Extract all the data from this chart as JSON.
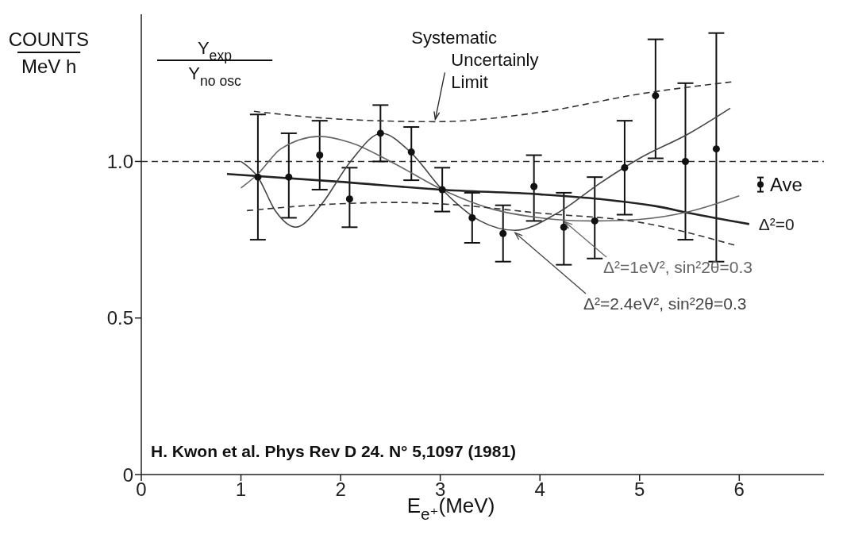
{
  "chart_data": {
    "type": "line",
    "ylabel": "COUNTS/MeV h",
    "xlabel": "E$_{e⁺}$(MeV)",
    "annotations": [
      "Y$_{exp}$/Y$_{no osc}$",
      {
        "text": "Systematic Uncertainly Limit",
        "x": 2.95,
        "y": 1.127
      },
      "H. Kwon et al. Phys Rev D 24. N° 5,1097 (1981)"
    ],
    "xlim": [
      0,
      6.85
    ],
    "ylim": [
      0,
      1.47
    ],
    "xticks": [
      0,
      1,
      2,
      3,
      4,
      5,
      6
    ],
    "yticks": [
      0,
      0.5,
      {
        "value": 1,
        "label": "1.0"
      }
    ],
    "grid": false,
    "legend": "right",
    "ref_lines": [
      {
        "axis": "y",
        "value": 1,
        "line_style": "dashed",
        "color": "#333333"
      }
    ],
    "series": [
      {
        "name": "Ave",
        "type": "scatter",
        "marker": "circle",
        "color": "#111111",
        "x": [
          1.17,
          1.48,
          1.79,
          2.09,
          2.4,
          2.71,
          3.02,
          3.32,
          3.63,
          3.94,
          4.24,
          4.55,
          4.85,
          5.16,
          5.46,
          5.77
        ],
        "values": [
          0.95,
          0.95,
          1.02,
          0.88,
          1.09,
          1.03,
          0.91,
          0.82,
          0.77,
          0.92,
          0.79,
          0.81,
          0.98,
          1.21,
          1.0,
          1.04
        ],
        "errors": [
          [
            0.75,
            1.15
          ],
          [
            0.82,
            1.09
          ],
          [
            0.91,
            1.13
          ],
          [
            0.79,
            0.98
          ],
          [
            1.0,
            1.18
          ],
          [
            0.94,
            1.11
          ],
          [
            0.84,
            0.98
          ],
          [
            0.74,
            0.9
          ],
          [
            0.68,
            0.86
          ],
          [
            0.81,
            1.02
          ],
          [
            0.67,
            0.9
          ],
          [
            0.69,
            0.95
          ],
          [
            0.83,
            1.13
          ],
          [
            1.01,
            1.39
          ],
          [
            0.75,
            1.25
          ],
          [
            0.68,
            1.41
          ]
        ]
      },
      {
        "name": "Δ²=0",
        "line_style": "solid",
        "color": "#222222",
        "x": [
          0.86,
          2,
          3,
          4,
          4.6,
          5.2,
          5.5,
          6.1
        ],
        "values": [
          0.96,
          0.935,
          0.91,
          0.895,
          0.88,
          0.855,
          0.835,
          0.8
        ]
      },
      {
        "name": "Δ²=1eV²,  sin²2θ=0.3",
        "line_style": "solid",
        "color": "#666666",
        "x": [
          1.0,
          1.17,
          1.4,
          1.79,
          2.1,
          2.5,
          3.02,
          3.5,
          4.0,
          4.5,
          5.0,
          5.5,
          6.0
        ],
        "values": [
          0.915,
          0.96,
          1.04,
          1.08,
          1.06,
          1.0,
          0.91,
          0.85,
          0.82,
          0.81,
          0.815,
          0.84,
          0.89
        ]
      },
      {
        "name": "Δ²=2.4eV²,  sin²2θ=0.3",
        "line_style": "solid",
        "color": "#444444",
        "x": [
          1.0,
          1.17,
          1.35,
          1.55,
          1.8,
          2.1,
          2.41,
          2.7,
          3.02,
          3.4,
          3.75,
          4.2,
          4.6,
          5.0,
          5.5,
          5.91
        ],
        "values": [
          1.0,
          0.95,
          0.84,
          0.79,
          0.86,
          1.0,
          1.09,
          1.03,
          0.91,
          0.81,
          0.78,
          0.84,
          0.93,
          1.01,
          1.09,
          1.17
        ]
      },
      {
        "line_style": "dashed",
        "color": "#333333",
        "x": [
          1.13,
          2.0,
          2.95,
          4.0,
          5.01,
          5.92
        ],
        "values": [
          1.16,
          1.135,
          1.127,
          1.157,
          1.216,
          1.254
        ]
      },
      {
        "line_style": "dashed",
        "color": "#333333",
        "x": [
          1.06,
          2.0,
          2.56,
          3.03,
          4.0,
          5.01,
          5.95
        ],
        "values": [
          0.843,
          0.865,
          0.869,
          0.864,
          0.835,
          0.805,
          0.733
        ]
      }
    ]
  }
}
